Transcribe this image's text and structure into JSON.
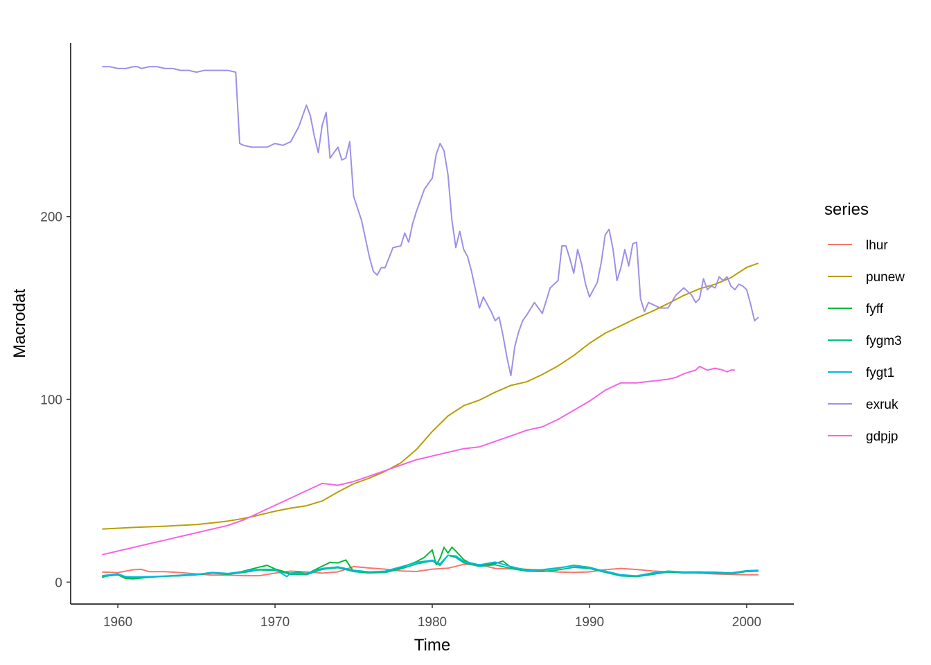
{
  "chart_data": {
    "type": "line",
    "xlabel": "Time",
    "ylabel": "Macrodat",
    "xlim": [
      1957,
      2003
    ],
    "ylim": [
      -12,
      295
    ],
    "x_ticks": [
      1960,
      1970,
      1980,
      1990,
      2000
    ],
    "y_ticks": [
      0,
      100,
      200
    ],
    "grid": false,
    "legend": {
      "title": "series",
      "position": "right"
    },
    "series": [
      {
        "name": "lhur",
        "color": "#F8766D",
        "x": [
          1959,
          1960,
          1961,
          1961.5,
          1962,
          1963,
          1964,
          1965,
          1966,
          1967,
          1968,
          1969,
          1970,
          1971,
          1972,
          1973,
          1974,
          1975,
          1976,
          1977,
          1978,
          1979,
          1980,
          1981,
          1982,
          1983,
          1984,
          1985,
          1986,
          1987,
          1988,
          1989,
          1990,
          1991,
          1992,
          1993,
          1994,
          1995,
          1996,
          1997,
          1998,
          1999,
          2000,
          2000.75
        ],
        "y": [
          5.5,
          5.2,
          6.8,
          7.0,
          5.7,
          5.7,
          5.2,
          4.5,
          3.8,
          3.8,
          3.5,
          3.5,
          4.9,
          6.0,
          5.6,
          4.9,
          5.6,
          8.5,
          7.7,
          7.1,
          6.1,
          5.8,
          7.1,
          7.6,
          9.7,
          9.6,
          7.5,
          7.2,
          7.0,
          6.2,
          5.5,
          5.3,
          5.6,
          6.8,
          7.5,
          6.9,
          6.1,
          5.6,
          5.4,
          4.9,
          4.5,
          4.2,
          4.0,
          4.0
        ]
      },
      {
        "name": "punew",
        "color": "#B79F00",
        "x": [
          1959,
          1961,
          1963,
          1965,
          1966,
          1967,
          1968,
          1969,
          1970,
          1971,
          1972,
          1973,
          1974,
          1975,
          1976,
          1977,
          1978,
          1979,
          1980,
          1981,
          1982,
          1983,
          1984,
          1985,
          1986,
          1987,
          1988,
          1989,
          1990,
          1991,
          1992,
          1993,
          1994,
          1995,
          1996,
          1997,
          1998,
          1999,
          2000,
          2000.75
        ],
        "y": [
          29.0,
          29.9,
          30.6,
          31.5,
          32.4,
          33.4,
          34.8,
          36.7,
          38.8,
          40.5,
          41.8,
          44.4,
          49.3,
          53.8,
          56.9,
          60.6,
          65.2,
          72.6,
          82.4,
          90.9,
          96.5,
          99.6,
          103.9,
          107.6,
          109.6,
          113.6,
          118.3,
          124.0,
          130.7,
          136.2,
          140.3,
          144.5,
          148.2,
          152.4,
          156.9,
          160.5,
          163.0,
          166.6,
          172.2,
          174.5
        ]
      },
      {
        "name": "fyff",
        "color": "#00BA38",
        "x": [
          1959,
          1959.5,
          1960,
          1960.5,
          1961,
          1962,
          1963,
          1964,
          1965,
          1966,
          1967,
          1968,
          1969,
          1969.5,
          1970,
          1971,
          1971.5,
          1972,
          1973,
          1973.5,
          1974,
          1974.5,
          1975,
          1976,
          1977,
          1978,
          1979,
          1979.5,
          1980,
          1980.25,
          1980.5,
          1980.75,
          1981,
          1981.25,
          1981.5,
          1982,
          1982.5,
          1983,
          1984,
          1984.5,
          1985,
          1986,
          1987,
          1988,
          1989,
          1990,
          1991,
          1992,
          1993,
          1994,
          1995,
          1996,
          1997,
          1998,
          1999,
          2000,
          2000.75
        ],
        "y": [
          2.5,
          3.9,
          4.0,
          2.0,
          1.8,
          2.7,
          3.2,
          3.5,
          4.1,
          5.1,
          4.2,
          6.0,
          8.2,
          9.2,
          7.2,
          4.7,
          5.6,
          4.4,
          8.7,
          10.8,
          10.5,
          12.1,
          5.8,
          5.0,
          5.5,
          7.9,
          11.2,
          13.6,
          17.6,
          9.5,
          13.0,
          19.0,
          15.9,
          19.1,
          17.0,
          12.3,
          10.0,
          9.1,
          10.2,
          11.5,
          8.1,
          6.8,
          6.7,
          7.6,
          9.2,
          8.1,
          5.7,
          3.5,
          3.0,
          4.2,
          5.8,
          5.3,
          5.5,
          5.4,
          5.0,
          6.2,
          6.5
        ]
      },
      {
        "name": "fygm3",
        "color": "#00BF7D",
        "x": [
          1959,
          1960,
          1960.5,
          1961,
          1962,
          1963,
          1964,
          1965,
          1966,
          1967,
          1968,
          1969,
          1970,
          1971,
          1972,
          1973,
          1974,
          1975,
          1976,
          1977,
          1978,
          1979,
          1980,
          1980.5,
          1981,
          1981.5,
          1982,
          1983,
          1984,
          1985,
          1986,
          1987,
          1988,
          1989,
          1990,
          1991,
          1992,
          1993,
          1994,
          1995,
          1996,
          1997,
          1998,
          1999,
          2000,
          2000.75
        ],
        "y": [
          3.0,
          4.0,
          2.5,
          2.3,
          2.8,
          3.2,
          3.5,
          4.0,
          4.9,
          4.3,
          5.3,
          6.7,
          6.4,
          4.3,
          4.1,
          7.0,
          7.9,
          5.8,
          5.0,
          5.3,
          7.2,
          10.0,
          11.6,
          9.2,
          14.7,
          13.5,
          10.6,
          8.6,
          9.5,
          7.5,
          6.0,
          5.8,
          6.7,
          8.1,
          7.5,
          5.4,
          3.4,
          3.0,
          4.3,
          5.5,
          5.0,
          5.1,
          4.8,
          4.6,
          5.8,
          6.0
        ]
      },
      {
        "name": "fygt1",
        "color": "#00B9E3",
        "x": [
          1959,
          1960,
          1960.5,
          1961,
          1962,
          1963,
          1964,
          1965,
          1966,
          1967,
          1968,
          1969,
          1970,
          1970.75,
          1971,
          1972,
          1973,
          1974,
          1975,
          1976,
          1977,
          1978,
          1979,
          1980,
          1980.5,
          1981,
          1981.5,
          1982,
          1983,
          1984,
          1985,
          1986,
          1987,
          1988,
          1989,
          1990,
          1991,
          1992,
          1993,
          1994,
          1995,
          1996,
          1997,
          1998,
          1999,
          2000,
          2000.75
        ],
        "y": [
          3.5,
          4.5,
          3.0,
          2.8,
          3.0,
          3.3,
          3.8,
          4.2,
          5.3,
          4.7,
          5.8,
          7.0,
          7.0,
          3.0,
          5.0,
          4.8,
          7.5,
          8.3,
          6.5,
          5.6,
          6.0,
          8.3,
          10.8,
          12.0,
          10.0,
          14.7,
          14.3,
          11.4,
          9.4,
          11.0,
          8.5,
          6.5,
          6.8,
          7.8,
          9.0,
          7.9,
          6.0,
          4.0,
          3.4,
          5.0,
          6.0,
          5.5,
          5.6,
          5.0,
          5.0,
          6.2,
          6.4
        ]
      },
      {
        "name": "exruk",
        "color": "#9E8FE8",
        "x": [
          1959,
          1959.5,
          1960,
          1960.5,
          1961,
          1961.25,
          1961.5,
          1962,
          1962.5,
          1963,
          1963.5,
          1964,
          1964.5,
          1965,
          1965.5,
          1966,
          1966.5,
          1967,
          1967.5,
          1967.75,
          1968,
          1968.5,
          1969,
          1969.5,
          1970,
          1970.5,
          1971,
          1971.5,
          1972,
          1972.25,
          1972.5,
          1972.75,
          1973,
          1973.25,
          1973.5,
          1974,
          1974.25,
          1974.5,
          1974.75,
          1975,
          1975.5,
          1976,
          1976.25,
          1976.5,
          1976.75,
          1977,
          1977.5,
          1978,
          1978.25,
          1978.5,
          1978.75,
          1979,
          1979.5,
          1980,
          1980.25,
          1980.5,
          1980.75,
          1981,
          1981.25,
          1981.5,
          1981.75,
          1982,
          1982.25,
          1982.5,
          1982.75,
          1983,
          1983.25,
          1983.5,
          1983.75,
          1984,
          1984.25,
          1984.5,
          1984.75,
          1985,
          1985.25,
          1985.5,
          1985.75,
          1986,
          1986.5,
          1987,
          1987.5,
          1988,
          1988.25,
          1988.5,
          1988.75,
          1989,
          1989.25,
          1989.5,
          1989.75,
          1990,
          1990.25,
          1990.5,
          1990.75,
          1991,
          1991.25,
          1991.5,
          1991.75,
          1992,
          1992.25,
          1992.5,
          1992.75,
          1993,
          1993.25,
          1993.5,
          1993.75,
          1994,
          1994.5,
          1995,
          1995.5,
          1996,
          1996.5,
          1996.75,
          1997,
          1997.25,
          1997.5,
          1997.75,
          1998,
          1998.25,
          1998.5,
          1998.75,
          1999,
          1999.25,
          1999.5,
          1999.75,
          2000,
          2000.25,
          2000.5,
          2000.75
        ],
        "y": [
          282,
          282,
          281,
          281,
          282,
          282,
          281,
          282,
          282,
          281,
          281,
          280,
          280,
          279,
          280,
          280,
          280,
          280,
          279,
          240,
          239,
          238,
          238,
          238,
          240,
          239,
          241,
          249,
          261,
          255,
          244,
          235,
          250,
          257,
          232,
          238,
          231,
          232,
          241,
          211,
          198,
          178,
          170,
          168,
          172,
          172,
          183,
          184,
          191,
          186,
          196,
          203,
          215,
          221,
          234,
          240,
          236,
          223,
          198,
          183,
          192,
          182,
          178,
          170,
          160,
          150,
          156,
          152,
          148,
          143,
          145,
          135,
          123,
          113,
          129,
          137,
          143,
          146,
          153,
          147,
          161,
          165,
          184,
          184,
          177,
          169,
          182,
          174,
          163,
          156,
          160,
          164,
          175,
          190,
          193,
          182,
          165,
          172,
          182,
          173,
          185,
          186,
          155,
          148,
          153,
          152,
          150,
          150,
          157,
          161,
          157,
          153,
          155,
          166,
          160,
          162,
          161,
          167,
          165,
          167,
          162,
          160,
          163,
          162,
          160,
          152,
          143,
          145
        ]
      },
      {
        "name": "gdpjp",
        "color": "#F564E3",
        "x": [
          1959,
          1960,
          1961,
          1962,
          1963,
          1964,
          1965,
          1966,
          1967,
          1968,
          1969,
          1970,
          1971,
          1972,
          1973,
          1974,
          1975,
          1976,
          1977,
          1978,
          1979,
          1980,
          1981,
          1982,
          1983,
          1984,
          1985,
          1986,
          1987,
          1988,
          1989,
          1990,
          1991,
          1992,
          1993,
          1994,
          1995,
          1995.5,
          1996,
          1996.75,
          1997,
          1997.5,
          1998,
          1998.5,
          1998.75,
          1999,
          1999.25
        ],
        "y": [
          15,
          17,
          19,
          21,
          23,
          25,
          27,
          29,
          31,
          34,
          38,
          42,
          46,
          50,
          54,
          53,
          55,
          58,
          61,
          64,
          67,
          69,
          71,
          73,
          74,
          77,
          80,
          83,
          85,
          89,
          94,
          99,
          105,
          109,
          109,
          110,
          111,
          112,
          114,
          116,
          118,
          116,
          117,
          116,
          115,
          116,
          116
        ]
      }
    ]
  }
}
